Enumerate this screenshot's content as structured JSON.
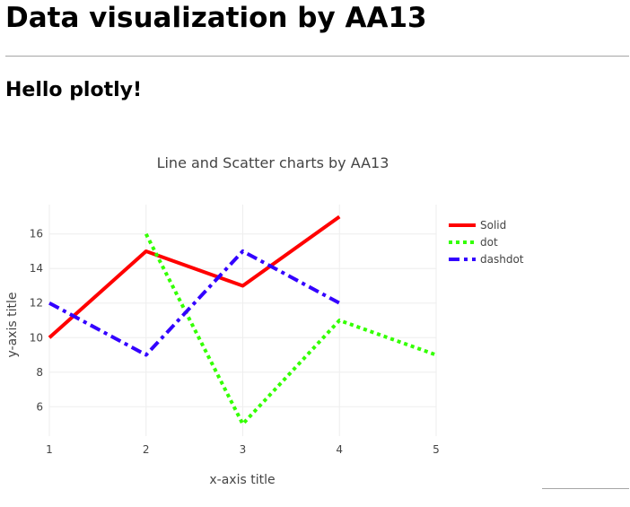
{
  "page": {
    "title": "Data visualization by AA13",
    "subtitle": "Hello plotly!"
  },
  "chart_data": {
    "type": "line",
    "title": "Line and Scatter charts by AA13",
    "xlabel": "x-axis title",
    "ylabel": "y-axis title",
    "xlim": [
      1,
      5
    ],
    "ylim": [
      4.3,
      17.7
    ],
    "xticks": [
      1,
      2,
      3,
      4,
      5
    ],
    "yticks": [
      6,
      8,
      10,
      12,
      14,
      16
    ],
    "grid": true,
    "legend_position": "top-right",
    "series": [
      {
        "name": "Solid",
        "x": [
          1,
          2,
          3,
          4
        ],
        "y": [
          10,
          15,
          13,
          17
        ],
        "color": "#ff0000",
        "dash": "solid"
      },
      {
        "name": "dot",
        "x": [
          2,
          3,
          4,
          5
        ],
        "y": [
          16,
          5,
          11,
          9
        ],
        "color": "#33ff00",
        "dash": "dot"
      },
      {
        "name": "dashdot",
        "x": [
          1,
          2,
          3,
          4
        ],
        "y": [
          12,
          9,
          15,
          12
        ],
        "color": "#3300ff",
        "dash": "dashdot"
      }
    ]
  }
}
